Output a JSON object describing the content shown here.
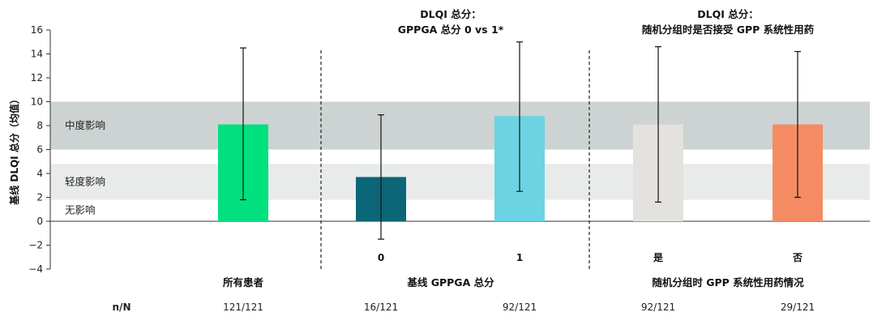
{
  "chart_data": {
    "type": "bar",
    "ylabel": "基线 DLQI 总分（均值）",
    "ylim": [
      -4,
      16
    ],
    "yticks": [
      -4,
      -2,
      0,
      2,
      4,
      6,
      8,
      10,
      12,
      14,
      16
    ],
    "bands": [
      {
        "label": "无影响",
        "range": [
          0,
          1.8
        ],
        "color": "#ffffff"
      },
      {
        "label": "轻度影响",
        "range": [
          1.8,
          4.8
        ],
        "color": "#e8ebea"
      },
      {
        "label": "中度影响",
        "range": [
          6,
          10
        ],
        "color": "#cdd3d2"
      }
    ],
    "group_titles": [
      {
        "line1": "DLQI 总分：",
        "line2": "GPPGA 总分 0 vs 1*"
      },
      {
        "line1": "DLQI 总分：",
        "line2": "随机分组时是否接受 GPP 系统性用药"
      }
    ],
    "group_labels": [
      "所有患者",
      "基线 GPPGA 总分",
      "随机分组时 GPP 系统性用药情况"
    ],
    "bars": [
      {
        "category": "",
        "value": 8.1,
        "err_low": 1.8,
        "err_high": 14.5,
        "color": "#00e07f",
        "nn": "121/121"
      },
      {
        "category": "0",
        "value": 3.7,
        "err_low": -1.5,
        "err_high": 8.9,
        "color": "#0b6677",
        "nn": "16/121"
      },
      {
        "category": "1",
        "value": 8.8,
        "err_low": 2.5,
        "err_high": 15.0,
        "color": "#6cd3e2",
        "nn": "92/121"
      },
      {
        "category": "是",
        "value": 8.1,
        "err_low": 1.6,
        "err_high": 14.6,
        "color": "#e4e2de",
        "nn": "92/121"
      },
      {
        "category": "否",
        "value": 8.1,
        "err_low": 2.0,
        "err_high": 14.2,
        "color": "#f58b63",
        "nn": "29/121"
      }
    ],
    "nn_label": "n/N"
  }
}
